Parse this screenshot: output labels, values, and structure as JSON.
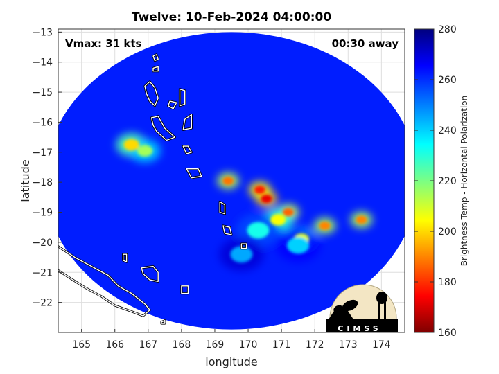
{
  "chart_data": {
    "type": "heatmap",
    "title": "Twelve: 10-Feb-2024 04:00:00",
    "xlabel": "longitude",
    "ylabel": "latitude",
    "xlim": [
      164.3,
      174.7
    ],
    "ylim": [
      -23.0,
      -12.9
    ],
    "x_ticks": [
      165,
      166,
      167,
      168,
      169,
      170,
      171,
      172,
      173,
      174
    ],
    "y_ticks": [
      -13,
      -14,
      -15,
      -16,
      -17,
      -18,
      -19,
      -20,
      -21,
      -22
    ],
    "grid": true,
    "annotations": {
      "vmax": "Vmax: 31 kts",
      "time_away": "00:30 away"
    },
    "colorbar": {
      "label": "Brightness Temp - Horizontal Polarization",
      "range": [
        160,
        280
      ],
      "ticks": [
        280,
        260,
        240,
        220,
        200,
        180,
        160
      ],
      "colormap": "jet"
    },
    "swath": {
      "center": [
        169.5,
        -17.95
      ],
      "radius_lon": 5.6,
      "radius_lat": 4.95,
      "background_value": 262
    },
    "features": [
      {
        "lon": 170.55,
        "lat": -18.55,
        "value": 172
      },
      {
        "lon": 170.35,
        "lat": -18.25,
        "value": 178
      },
      {
        "lon": 171.2,
        "lat": -19.0,
        "value": 186
      },
      {
        "lon": 170.9,
        "lat": -19.25,
        "value": 205
      },
      {
        "lon": 171.6,
        "lat": -19.9,
        "value": 208
      },
      {
        "lon": 172.3,
        "lat": -19.45,
        "value": 190
      },
      {
        "lon": 173.4,
        "lat": -19.25,
        "value": 190
      },
      {
        "lon": 169.4,
        "lat": -17.95,
        "value": 188
      },
      {
        "lon": 166.5,
        "lat": -16.75,
        "value": 200
      },
      {
        "lon": 166.9,
        "lat": -16.95,
        "value": 215
      },
      {
        "lon": 170.3,
        "lat": -19.6,
        "value": 232
      },
      {
        "lon": 171.5,
        "lat": -20.1,
        "value": 240
      },
      {
        "lon": 169.8,
        "lat": -20.4,
        "value": 245
      }
    ],
    "coastlines": [
      [
        [
          166.9,
          -14.8
        ],
        [
          167.05,
          -14.65
        ],
        [
          167.2,
          -14.85
        ],
        [
          167.3,
          -15.2
        ],
        [
          167.2,
          -15.45
        ],
        [
          167.05,
          -15.3
        ],
        [
          166.95,
          -15.05
        ]
      ],
      [
        [
          167.15,
          -13.8
        ],
        [
          167.25,
          -13.75
        ],
        [
          167.3,
          -13.9
        ],
        [
          167.2,
          -13.95
        ]
      ],
      [
        [
          167.15,
          -14.2
        ],
        [
          167.3,
          -14.15
        ],
        [
          167.3,
          -14.3
        ],
        [
          167.15,
          -14.3
        ]
      ],
      [
        [
          167.95,
          -14.9
        ],
        [
          168.1,
          -14.95
        ],
        [
          168.1,
          -15.4
        ],
        [
          167.95,
          -15.45
        ]
      ],
      [
        [
          167.65,
          -15.3
        ],
        [
          167.85,
          -15.35
        ],
        [
          167.75,
          -15.55
        ],
        [
          167.6,
          -15.45
        ]
      ],
      [
        [
          167.1,
          -15.85
        ],
        [
          167.3,
          -15.8
        ],
        [
          167.5,
          -16.2
        ],
        [
          167.8,
          -16.5
        ],
        [
          167.55,
          -16.6
        ],
        [
          167.25,
          -16.3
        ],
        [
          167.15,
          -16.1
        ]
      ],
      [
        [
          168.1,
          -15.9
        ],
        [
          168.3,
          -15.75
        ],
        [
          168.3,
          -16.2
        ],
        [
          168.05,
          -16.25
        ]
      ],
      [
        [
          168.05,
          -16.8
        ],
        [
          168.2,
          -16.8
        ],
        [
          168.3,
          -17.0
        ],
        [
          168.15,
          -17.05
        ]
      ],
      [
        [
          168.15,
          -17.55
        ],
        [
          168.5,
          -17.55
        ],
        [
          168.6,
          -17.8
        ],
        [
          168.3,
          -17.85
        ]
      ],
      [
        [
          169.15,
          -18.65
        ],
        [
          169.3,
          -18.75
        ],
        [
          169.3,
          -19.05
        ],
        [
          169.15,
          -19.0
        ]
      ],
      [
        [
          169.25,
          -19.45
        ],
        [
          169.45,
          -19.5
        ],
        [
          169.5,
          -19.75
        ],
        [
          169.3,
          -19.7
        ]
      ],
      [
        [
          169.8,
          -20.05
        ],
        [
          169.95,
          -20.05
        ],
        [
          169.95,
          -20.2
        ],
        [
          169.8,
          -20.2
        ]
      ],
      [
        [
          166.8,
          -20.85
        ],
        [
          167.15,
          -20.8
        ],
        [
          167.3,
          -21.0
        ],
        [
          167.3,
          -21.3
        ],
        [
          167.05,
          -21.25
        ],
        [
          166.85,
          -21.05
        ]
      ],
      [
        [
          166.25,
          -20.4
        ],
        [
          166.35,
          -20.4
        ],
        [
          166.35,
          -20.65
        ],
        [
          166.25,
          -20.6
        ]
      ],
      [
        [
          168.0,
          -21.45
        ],
        [
          168.2,
          -21.45
        ],
        [
          168.2,
          -21.7
        ],
        [
          168.0,
          -21.7
        ]
      ],
      [
        [
          164.25,
          -20.1
        ],
        [
          164.8,
          -20.5
        ],
        [
          165.3,
          -20.8
        ],
        [
          165.8,
          -21.1
        ],
        [
          166.1,
          -21.45
        ],
        [
          166.5,
          -21.7
        ],
        [
          166.9,
          -22.05
        ],
        [
          167.05,
          -22.25
        ],
        [
          166.85,
          -22.45
        ],
        [
          166.5,
          -22.3
        ],
        [
          166.0,
          -22.1
        ],
        [
          165.6,
          -21.8
        ],
        [
          165.1,
          -21.5
        ],
        [
          164.6,
          -21.15
        ],
        [
          164.25,
          -20.9
        ]
      ],
      [
        [
          167.4,
          -22.65
        ],
        [
          167.5,
          -22.6
        ],
        [
          167.5,
          -22.7
        ],
        [
          167.4,
          -22.7
        ]
      ]
    ]
  },
  "logo": {
    "text": "CIMSS"
  }
}
